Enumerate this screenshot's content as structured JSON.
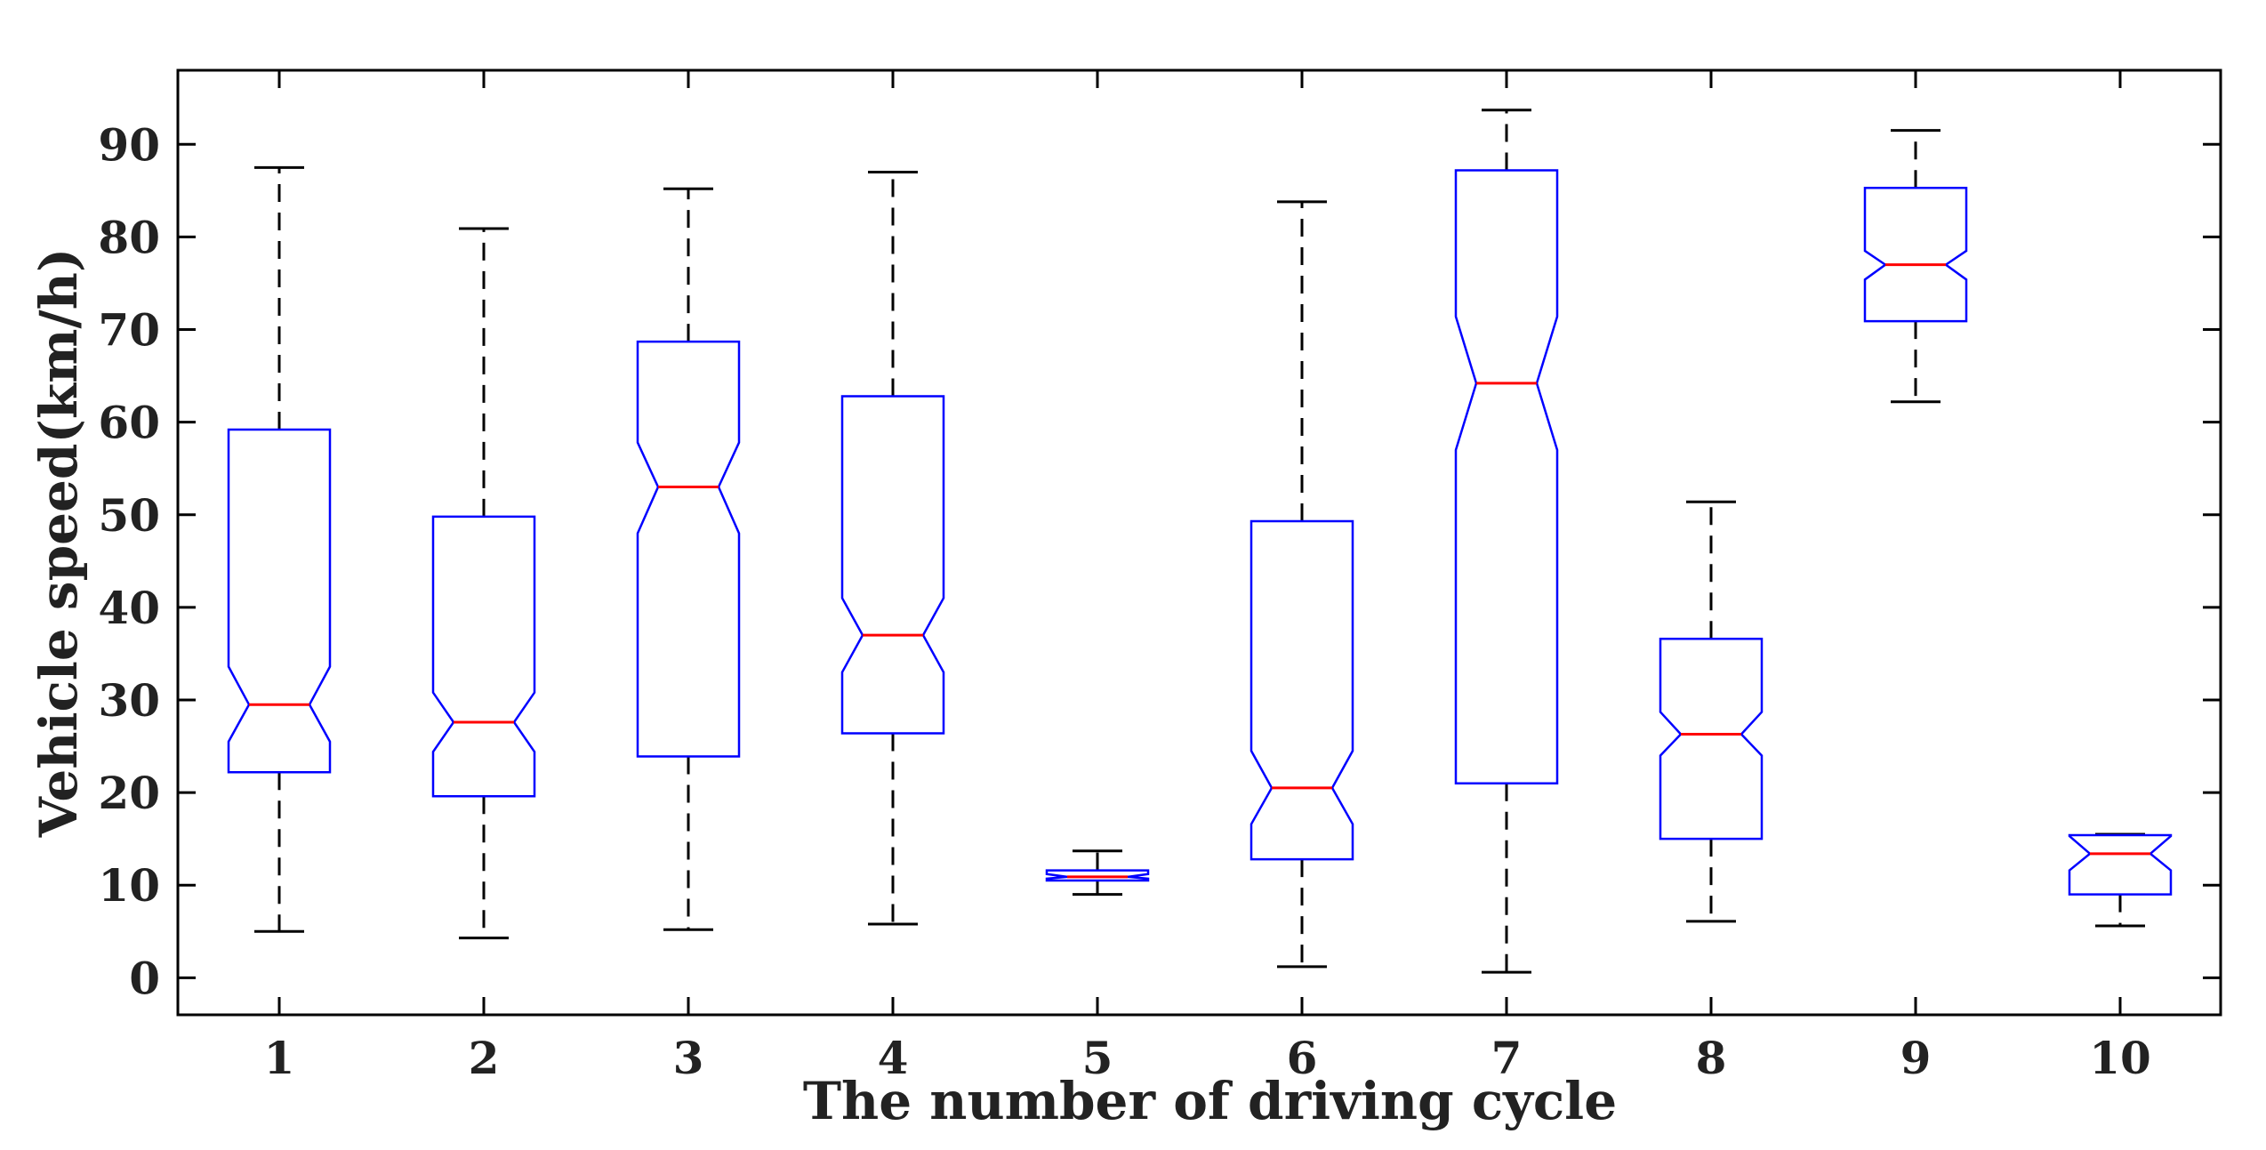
{
  "chart_data": {
    "type": "boxplot",
    "title": "",
    "xlabel": "The number of driving cycle",
    "ylabel": "Vehicle speed(km/h)",
    "ylim": [
      -4,
      98
    ],
    "yticks": [
      0,
      10,
      20,
      30,
      40,
      50,
      60,
      70,
      80,
      90
    ],
    "categories": [
      "1",
      "2",
      "3",
      "4",
      "5",
      "6",
      "7",
      "8",
      "9",
      "10"
    ],
    "notched": true,
    "colors": {
      "box": "#0000ff",
      "median": "#ff0000",
      "whisker": "#000000",
      "axes": "#000000"
    },
    "boxes": [
      {
        "label": "1",
        "whisker_low": 5.0,
        "q1": 22.2,
        "notch_low": 25.5,
        "median": 29.5,
        "notch_high": 33.6,
        "q3": 59.2,
        "whisker_high": 87.5
      },
      {
        "label": "2",
        "whisker_low": 4.3,
        "q1": 19.6,
        "notch_low": 24.4,
        "median": 27.6,
        "notch_high": 30.8,
        "q3": 49.8,
        "whisker_high": 80.9
      },
      {
        "label": "3",
        "whisker_low": 5.2,
        "q1": 23.9,
        "notch_low": 48.0,
        "median": 53.0,
        "notch_high": 57.8,
        "q3": 68.7,
        "whisker_high": 85.2
      },
      {
        "label": "4",
        "whisker_low": 5.8,
        "q1": 26.4,
        "notch_low": 33.0,
        "median": 37.0,
        "notch_high": 41.0,
        "q3": 62.8,
        "whisker_high": 87.0
      },
      {
        "label": "5",
        "whisker_low": 9.0,
        "q1": 10.5,
        "notch_low": 10.7,
        "median": 10.9,
        "notch_high": 11.2,
        "q3": 11.6,
        "whisker_high": 13.7
      },
      {
        "label": "6",
        "whisker_low": 1.2,
        "q1": 12.8,
        "notch_low": 16.6,
        "median": 20.5,
        "notch_high": 24.5,
        "q3": 49.3,
        "whisker_high": 83.8
      },
      {
        "label": "7",
        "whisker_low": 0.6,
        "q1": 21.0,
        "notch_low": 57.0,
        "median": 64.2,
        "notch_high": 71.4,
        "q3": 87.2,
        "whisker_high": 93.7
      },
      {
        "label": "8",
        "whisker_low": 6.1,
        "q1": 15.0,
        "notch_low": 24.0,
        "median": 26.3,
        "notch_high": 28.7,
        "q3": 36.6,
        "whisker_high": 51.4
      },
      {
        "label": "9",
        "whisker_low": 62.2,
        "q1": 70.9,
        "notch_low": 75.4,
        "median": 77.0,
        "notch_high": 78.5,
        "q3": 85.3,
        "whisker_high": 91.5
      },
      {
        "label": "10",
        "whisker_low": 5.6,
        "q1": 9.0,
        "notch_low": 11.6,
        "median": 13.4,
        "notch_high": 15.3,
        "q3": 15.4,
        "whisker_high": 15.5
      }
    ]
  }
}
